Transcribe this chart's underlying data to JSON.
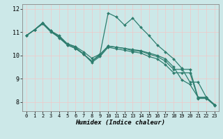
{
  "xlabel": "Humidex (Indice chaleur)",
  "bg_color": "#cce8e8",
  "line_color": "#2e7d6e",
  "grid_color": "#f0c8c8",
  "xlim": [
    -0.5,
    23.5
  ],
  "ylim": [
    7.6,
    12.2
  ],
  "xticks": [
    0,
    1,
    2,
    3,
    4,
    5,
    6,
    7,
    8,
    9,
    10,
    11,
    12,
    13,
    14,
    15,
    16,
    17,
    18,
    19,
    20,
    21,
    22,
    23
  ],
  "yticks": [
    8,
    9,
    10,
    11,
    12
  ],
  "lines": [
    {
      "x": [
        0,
        1,
        2,
        3,
        4,
        5,
        6,
        7,
        8,
        9,
        10,
        11,
        12,
        13,
        14,
        15,
        16,
        17,
        18,
        19,
        20,
        21,
        22,
        23
      ],
      "y": [
        10.85,
        11.1,
        11.4,
        11.05,
        10.75,
        10.45,
        10.3,
        10.05,
        9.75,
        10.05,
        11.82,
        11.65,
        11.3,
        11.6,
        11.2,
        10.85,
        10.45,
        10.15,
        9.85,
        9.45,
        8.85,
        8.85,
        8.2,
        7.88
      ]
    },
    {
      "x": [
        0,
        1,
        2,
        3,
        4,
        5,
        6,
        7,
        8,
        9,
        10,
        11,
        12,
        13,
        14,
        15,
        16,
        17,
        18,
        19,
        20,
        21,
        22,
        23
      ],
      "y": [
        10.85,
        11.1,
        11.4,
        11.05,
        10.85,
        10.5,
        10.35,
        10.05,
        9.75,
        10.0,
        10.4,
        10.35,
        10.3,
        10.25,
        10.2,
        10.1,
        10.0,
        9.85,
        9.5,
        8.95,
        8.75,
        8.2,
        8.2,
        7.88
      ]
    },
    {
      "x": [
        0,
        1,
        2,
        3,
        4,
        5,
        6,
        7,
        8,
        9,
        10,
        11,
        12,
        13,
        14,
        15,
        16,
        17,
        18,
        19,
        20,
        21,
        22,
        23
      ],
      "y": [
        10.85,
        11.1,
        11.4,
        11.05,
        10.8,
        10.5,
        10.38,
        10.15,
        9.88,
        10.05,
        10.4,
        10.35,
        10.3,
        10.2,
        10.18,
        10.05,
        9.95,
        9.75,
        9.4,
        9.4,
        9.4,
        8.18,
        8.18,
        7.88
      ]
    },
    {
      "x": [
        0,
        1,
        2,
        3,
        4,
        5,
        6,
        7,
        8,
        9,
        10,
        11,
        12,
        13,
        14,
        15,
        16,
        17,
        18,
        19,
        20,
        21,
        22,
        23
      ],
      "y": [
        10.85,
        11.1,
        11.35,
        11.0,
        10.78,
        10.45,
        10.3,
        10.05,
        9.7,
        9.95,
        10.35,
        10.28,
        10.22,
        10.15,
        10.1,
        9.95,
        9.85,
        9.6,
        9.25,
        9.25,
        9.25,
        8.15,
        8.15,
        7.85
      ]
    }
  ]
}
